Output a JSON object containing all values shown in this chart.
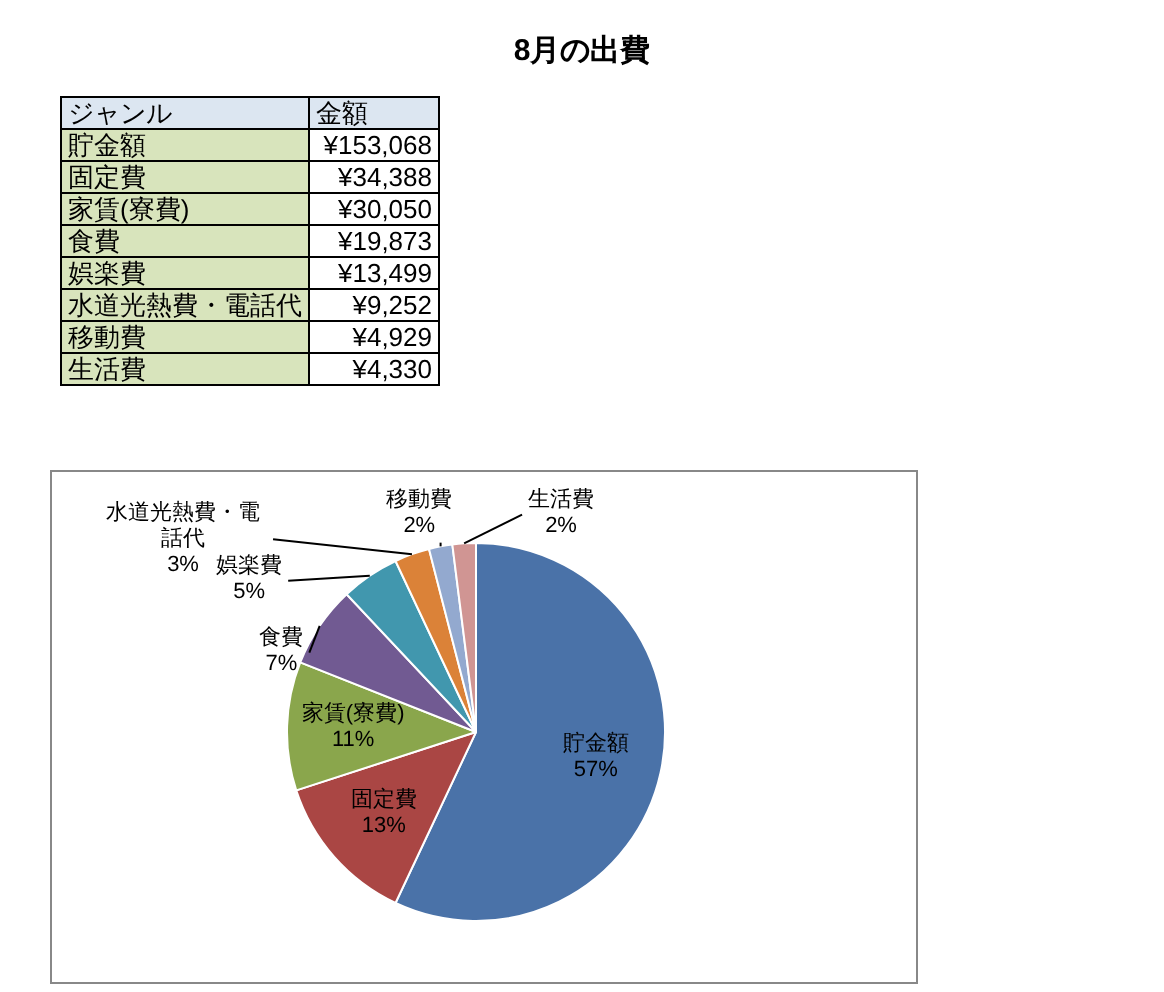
{
  "chart_data": {
    "type": "pie",
    "title": "8月の出費",
    "categories": [
      "貯金額",
      "固定費",
      "家賃(寮費)",
      "食費",
      "娯楽費",
      "水道光熱費・電話代",
      "移動費",
      "生活費"
    ],
    "values": [
      57,
      13,
      11,
      7,
      5,
      3,
      2,
      2
    ],
    "colors": [
      "#4a72a8",
      "#aa4644",
      "#8aa64c",
      "#715a92",
      "#4197ae",
      "#db8238",
      "#93a9cf",
      "#d09593"
    ],
    "value_labels": [
      "57%",
      "13%",
      "11%",
      "7%",
      "5%",
      "3%",
      "2%",
      "2%"
    ],
    "annotations": [
      "ジャンル",
      "金額",
      "¥153,068",
      "¥34,388",
      "¥30,050",
      "¥19,873",
      "¥13,499",
      "¥9,252",
      "¥4,929",
      "¥4,330"
    ],
    "legend": false
  }
}
